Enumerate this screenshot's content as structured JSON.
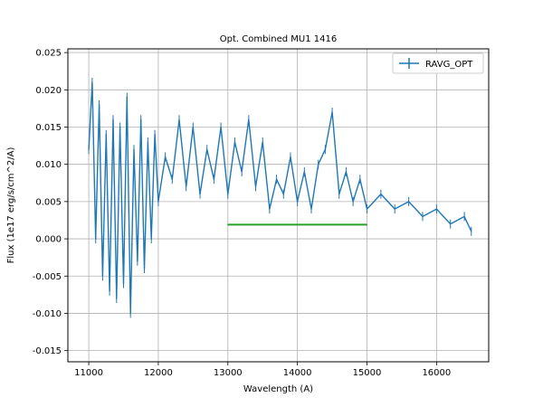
{
  "chart_data": {
    "type": "line",
    "title": "Opt. Combined MU1 1416",
    "xlabel": "Wavelength (A)",
    "ylabel": "Flux (1e17 erg/s/cm^2/A)",
    "xlim": [
      10700,
      16750
    ],
    "ylim": [
      -0.0165,
      0.0255
    ],
    "xticks": [
      11000,
      12000,
      13000,
      14000,
      15000,
      16000
    ],
    "yticks": [
      -0.015,
      -0.01,
      -0.005,
      0.0,
      0.005,
      0.01,
      0.015,
      0.02,
      0.025
    ],
    "ytick_labels": [
      "-0.015",
      "-0.010",
      "-0.005",
      "0.000",
      "0.005",
      "0.010",
      "0.015",
      "0.020",
      "0.025"
    ],
    "grid": true,
    "legend_position": "top-right",
    "series": [
      {
        "name": "RAVG_OPT",
        "color": "#1f77b4",
        "errorbars": true,
        "x": [
          11000,
          11050,
          11100,
          11150,
          11200,
          11250,
          11300,
          11350,
          11400,
          11450,
          11500,
          11550,
          11600,
          11650,
          11700,
          11750,
          11800,
          11850,
          11900,
          11950,
          12000,
          12100,
          12200,
          12300,
          12400,
          12500,
          12600,
          12700,
          12800,
          12900,
          13000,
          13100,
          13200,
          13300,
          13400,
          13500,
          13600,
          13700,
          13800,
          13900,
          14000,
          14100,
          14200,
          14300,
          14400,
          14500,
          14600,
          14700,
          14800,
          14900,
          15000,
          15200,
          15400,
          15600,
          15800,
          16000,
          16200,
          16400,
          16500
        ],
        "y": [
          0.012,
          0.021,
          0.0,
          0.018,
          -0.005,
          0.014,
          -0.007,
          0.016,
          -0.008,
          0.015,
          -0.006,
          0.019,
          -0.01,
          0.012,
          -0.003,
          0.016,
          -0.004,
          0.013,
          0.0,
          0.014,
          0.005,
          0.011,
          0.008,
          0.016,
          0.007,
          0.015,
          0.006,
          0.012,
          0.008,
          0.015,
          0.006,
          0.013,
          0.009,
          0.016,
          0.007,
          0.013,
          0.004,
          0.008,
          0.006,
          0.011,
          0.005,
          0.009,
          0.004,
          0.01,
          0.012,
          0.017,
          0.006,
          0.009,
          0.005,
          0.008,
          0.004,
          0.006,
          0.004,
          0.005,
          0.003,
          0.004,
          0.002,
          0.003,
          0.001
        ]
      },
      {
        "name": "",
        "color": "#2ca02c",
        "errorbars": false,
        "x": [
          13000,
          15000
        ],
        "y": [
          0.0019,
          0.0019
        ]
      }
    ]
  }
}
